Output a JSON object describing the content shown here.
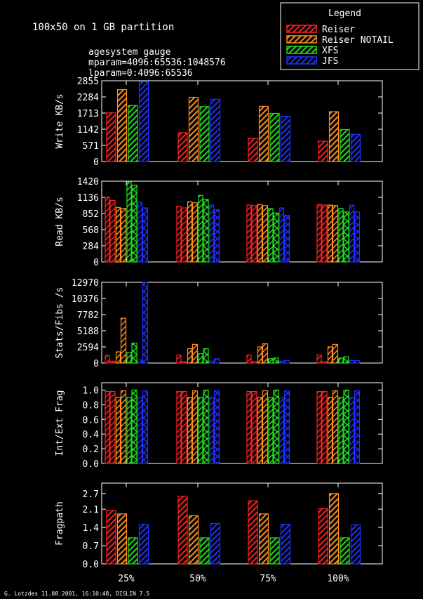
{
  "header": {
    "title": "100x50 on 1 GB partition",
    "params": [
      "agesystem gauge",
      "mparam=4096:65536:1048576",
      "lparam=0:4096:65536"
    ]
  },
  "legend": {
    "title": "Legend",
    "entries": [
      {
        "name": "Reiser",
        "color": "#ff2020"
      },
      {
        "name": "Reiser NOTAIL",
        "color": "#ff9020"
      },
      {
        "name": "XFS",
        "color": "#20e020"
      },
      {
        "name": "JFS",
        "color": "#2030ff"
      }
    ]
  },
  "footer": "G. Lotzdes 11.08.2001, 16:10:48, DISLIN 7.5",
  "chart_data": {
    "type": "bar",
    "categories": [
      "25%",
      "50%",
      "75%",
      "100%"
    ],
    "series_names": [
      "Reiser",
      "Reiser NOTAIL",
      "XFS",
      "JFS"
    ],
    "panels": [
      {
        "ylabel": "Write KB/s",
        "ylim": [
          0,
          2855
        ],
        "ticks": [
          "0",
          "571",
          "1142",
          "1713",
          "2284",
          "2855"
        ],
        "tick_values": [
          0,
          571,
          1142,
          1713,
          2284,
          2855
        ],
        "pattern": "single",
        "values": [
          [
            1720,
            2540,
            1980,
            2820
          ],
          [
            1020,
            2270,
            1940,
            2200
          ],
          [
            820,
            1950,
            1700,
            1600
          ],
          [
            720,
            1760,
            1130,
            960
          ]
        ]
      },
      {
        "ylabel": "Read KB/s",
        "ylim": [
          0,
          1420
        ],
        "ticks": [
          "0",
          "284",
          "568",
          "852",
          "1136",
          "1420"
        ],
        "tick_values": [
          0,
          284,
          568,
          852,
          1136,
          1420
        ],
        "pattern": "double",
        "values": [
          [
            [
              1140,
              1080
            ],
            [
              960,
              940
            ],
            [
              1410,
              1350
            ],
            [
              1050,
              950
            ]
          ],
          [
            [
              980,
              950
            ],
            [
              1060,
              1040
            ],
            [
              1170,
              1100
            ],
            [
              1000,
              920
            ]
          ],
          [
            [
              1000,
              990
            ],
            [
              1010,
              990
            ],
            [
              940,
              860
            ],
            [
              950,
              820
            ]
          ],
          [
            [
              1010,
              1000
            ],
            [
              1000,
              990
            ],
            [
              940,
              880
            ],
            [
              1000,
              880
            ]
          ]
        ]
      },
      {
        "ylabel": "Stats/Fibs /s",
        "ylim": [
          0,
          12970
        ],
        "ticks": [
          "0",
          "2594",
          "5188",
          "7782",
          "10376",
          "12970"
        ],
        "tick_values": [
          0,
          2594,
          5188,
          7782,
          10376,
          12970
        ],
        "pattern": "double",
        "values": [
          [
            [
              1200,
              300
            ],
            [
              1800,
              7200
            ],
            [
              1700,
              3200
            ],
            [
              500,
              13000
            ]
          ],
          [
            [
              1300,
              200
            ],
            [
              2300,
              3000
            ],
            [
              1500,
              2300
            ],
            [
              300,
              700
            ]
          ],
          [
            [
              1300,
              200
            ],
            [
              2600,
              3100
            ],
            [
              700,
              800
            ],
            [
              300,
              400
            ]
          ],
          [
            [
              1300,
              200
            ],
            [
              2600,
              3000
            ],
            [
              800,
              1000
            ],
            [
              400,
              400
            ]
          ]
        ]
      },
      {
        "ylabel": "Int/Ext Frag",
        "ylim": [
          0,
          1.1
        ],
        "ticks": [
          "0.0",
          "0.2",
          "0.4",
          "0.6",
          "0.8",
          "1.0"
        ],
        "tick_values": [
          0,
          0.2,
          0.4,
          0.6,
          0.8,
          1.0
        ],
        "pattern": "double",
        "values": [
          [
            [
              0.98,
              0.98
            ],
            [
              0.9,
              0.99
            ],
            [
              0.9,
              1.0
            ],
            [
              0.9,
              0.99
            ]
          ],
          [
            [
              0.98,
              0.98
            ],
            [
              0.9,
              0.99
            ],
            [
              0.9,
              1.0
            ],
            [
              0.9,
              0.99
            ]
          ],
          [
            [
              0.98,
              0.98
            ],
            [
              0.9,
              0.99
            ],
            [
              0.9,
              1.0
            ],
            [
              0.9,
              0.99
            ]
          ],
          [
            [
              0.98,
              0.98
            ],
            [
              0.9,
              0.99
            ],
            [
              0.9,
              1.0
            ],
            [
              0.9,
              0.99
            ]
          ]
        ]
      },
      {
        "ylabel": "Fragpath",
        "ylim": [
          0,
          3.1
        ],
        "ticks": [
          "0.0",
          "0.7",
          "1.4",
          "2.1",
          "2.7"
        ],
        "tick_values": [
          0,
          0.7,
          1.4,
          2.1,
          2.7
        ],
        "pattern": "single",
        "values": [
          [
            2.05,
            1.92,
            1.0,
            1.52
          ],
          [
            2.6,
            1.85,
            1.0,
            1.55
          ],
          [
            2.42,
            1.92,
            1.0,
            1.52
          ],
          [
            2.12,
            2.7,
            1.0,
            1.5
          ]
        ]
      }
    ]
  }
}
